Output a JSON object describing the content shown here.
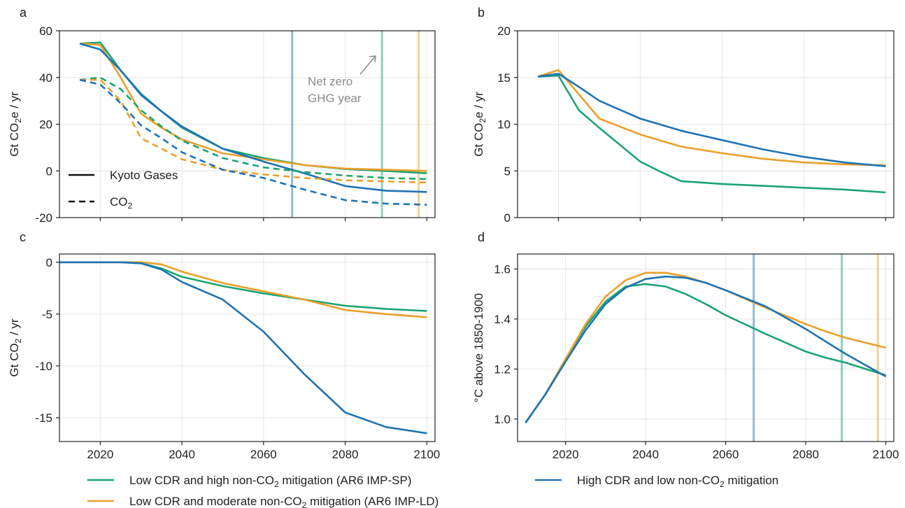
{
  "colors": {
    "green": "#1ba372",
    "orange": "#eaa02b",
    "blue": "#1f73b4"
  },
  "legend": {
    "items": [
      {
        "key": "green",
        "label": "Low CDR and high non-CO₂ mitigation (AR6 IMP-SP)"
      },
      {
        "key": "orange",
        "label": "Low CDR and moderate non-CO₂ mitigation (AR6 IMP-LD)"
      },
      {
        "key": "blue",
        "label": "High CDR and low non-CO₂ mitigation"
      }
    ]
  },
  "chart_data": [
    {
      "panel": "a",
      "type": "line",
      "ylabel": "Gt CO₂e / yr",
      "ylim": [
        -20,
        60
      ],
      "xlim": [
        2010,
        2102
      ],
      "yticks": [
        -20,
        0,
        20,
        40,
        60
      ],
      "xticks": [
        2020,
        2040,
        2060,
        2080,
        2100
      ],
      "show_xtick_labels": false,
      "grid": true,
      "inner_legend": [
        {
          "style": "solid",
          "label": "Kyoto Gases"
        },
        {
          "style": "dashed",
          "label": "CO₂"
        }
      ],
      "annotation": {
        "line1": "Net zero",
        "line2": "GHG year"
      },
      "vlines": [
        {
          "key": "blue",
          "x": 2067
        },
        {
          "key": "green",
          "x": 2089
        },
        {
          "key": "orange",
          "x": 2098
        }
      ],
      "series": [
        {
          "key": "green",
          "style": "solid",
          "x": [
            2015,
            2020,
            2025,
            2030,
            2035,
            2040,
            2050,
            2060,
            2070,
            2080,
            2090,
            2100
          ],
          "values": [
            54.5,
            55,
            43,
            33,
            25.5,
            18.5,
            9.5,
            5.5,
            2.5,
            0.8,
            0,
            -1
          ]
        },
        {
          "key": "orange",
          "style": "solid",
          "x": [
            2015,
            2020,
            2025,
            2030,
            2035,
            2040,
            2050,
            2060,
            2070,
            2080,
            2090,
            2100
          ],
          "values": [
            54.5,
            54,
            40,
            24.5,
            18.5,
            13.5,
            7.5,
            5,
            2.5,
            1,
            0.5,
            0
          ]
        },
        {
          "key": "blue",
          "style": "solid",
          "x": [
            2015,
            2020,
            2025,
            2030,
            2035,
            2040,
            2050,
            2060,
            2070,
            2080,
            2090,
            2100
          ],
          "values": [
            54.5,
            52,
            43,
            32.5,
            25.5,
            19,
            9.5,
            4,
            -1,
            -6.5,
            -8.5,
            -9
          ]
        },
        {
          "key": "green",
          "style": "dashed",
          "x": [
            2015,
            2020,
            2025,
            2030,
            2035,
            2040,
            2050,
            2060,
            2070,
            2080,
            2090,
            2100
          ],
          "values": [
            39,
            40,
            35,
            26,
            19,
            13,
            5.5,
            1.5,
            -0.5,
            -2,
            -3,
            -3.5
          ]
        },
        {
          "key": "orange",
          "style": "dashed",
          "x": [
            2015,
            2020,
            2025,
            2030,
            2035,
            2040,
            2050,
            2060,
            2070,
            2080,
            2090,
            2100
          ],
          "values": [
            39,
            39,
            30,
            14,
            9.5,
            5,
            0.5,
            -1.5,
            -3,
            -4,
            -4.5,
            -5
          ]
        },
        {
          "key": "blue",
          "style": "dashed",
          "x": [
            2015,
            2020,
            2025,
            2030,
            2035,
            2040,
            2050,
            2060,
            2070,
            2080,
            2090,
            2100
          ],
          "values": [
            39,
            37,
            29,
            19.5,
            14,
            8,
            0.5,
            -3,
            -8,
            -12.5,
            -14,
            -14.5
          ]
        }
      ]
    },
    {
      "panel": "b",
      "type": "line",
      "ylabel": "Gt CO₂e / yr",
      "ylim": [
        0,
        20
      ],
      "xlim": [
        2010,
        2102
      ],
      "yticks": [
        0,
        5,
        10,
        15,
        20
      ],
      "xticks": [
        2020,
        2040,
        2060,
        2080,
        2100
      ],
      "show_xtick_labels": false,
      "grid": true,
      "vlines": [],
      "series": [
        {
          "key": "green",
          "style": "solid",
          "x": [
            2015,
            2020,
            2025,
            2030,
            2040,
            2045,
            2050,
            2060,
            2070,
            2080,
            2090,
            2100
          ],
          "values": [
            15.1,
            15.2,
            11.5,
            9.6,
            6,
            4.9,
            3.9,
            3.6,
            3.4,
            3.2,
            3,
            2.7
          ]
        },
        {
          "key": "orange",
          "style": "solid",
          "x": [
            2015,
            2020,
            2025,
            2030,
            2040,
            2050,
            2060,
            2070,
            2080,
            2090,
            2100
          ],
          "values": [
            15.1,
            15.8,
            13.2,
            10.6,
            8.9,
            7.6,
            6.9,
            6.3,
            5.9,
            5.7,
            5.6
          ]
        },
        {
          "key": "blue",
          "style": "solid",
          "x": [
            2015,
            2020,
            2025,
            2030,
            2040,
            2050,
            2060,
            2070,
            2080,
            2090,
            2100
          ],
          "values": [
            15.1,
            15.4,
            14,
            12.5,
            10.6,
            9.3,
            8.3,
            7.3,
            6.5,
            5.9,
            5.5
          ]
        }
      ]
    },
    {
      "panel": "c",
      "type": "line",
      "ylabel": "Gt CO₂ / yr",
      "ylim": [
        -17.3,
        0.8
      ],
      "xlim": [
        2010,
        2102
      ],
      "yticks": [
        -15,
        -10,
        -5,
        0
      ],
      "xticks": [
        2020,
        2040,
        2060,
        2080,
        2100
      ],
      "show_xtick_labels": true,
      "grid": true,
      "vlines": [],
      "series": [
        {
          "key": "green",
          "style": "solid",
          "x": [
            2010,
            2020,
            2025,
            2030,
            2035,
            2040,
            2050,
            2060,
            2070,
            2080,
            2090,
            2100
          ],
          "values": [
            0,
            0,
            0,
            -0.1,
            -0.6,
            -1.4,
            -2.3,
            -3,
            -3.6,
            -4.2,
            -4.5,
            -4.7
          ]
        },
        {
          "key": "orange",
          "style": "solid",
          "x": [
            2010,
            2020,
            2025,
            2030,
            2035,
            2040,
            2050,
            2060,
            2070,
            2080,
            2090,
            2100
          ],
          "values": [
            0,
            0,
            0,
            0,
            -0.2,
            -0.9,
            -2,
            -2.8,
            -3.6,
            -4.6,
            -5,
            -5.3
          ]
        },
        {
          "key": "blue",
          "style": "solid",
          "x": [
            2010,
            2020,
            2025,
            2030,
            2035,
            2040,
            2050,
            2060,
            2070,
            2080,
            2090,
            2100
          ],
          "values": [
            0,
            0,
            0,
            -0.1,
            -0.7,
            -1.9,
            -3.6,
            -6.7,
            -10.8,
            -14.5,
            -15.9,
            -16.5
          ]
        }
      ]
    },
    {
      "panel": "d",
      "type": "line",
      "ylabel": "°C above 1850-1900",
      "ylim": [
        0.91,
        1.66
      ],
      "xlim": [
        2008,
        2102
      ],
      "yticks": [
        1.0,
        1.2,
        1.4,
        1.6
      ],
      "ytick_labels": [
        "1.0",
        "1.2",
        "1.4",
        "1.6"
      ],
      "xticks": [
        2020,
        2040,
        2060,
        2080,
        2100
      ],
      "show_xtick_labels": true,
      "grid": true,
      "vlines": [
        {
          "key": "blue",
          "x": 2067
        },
        {
          "key": "green",
          "x": 2089
        },
        {
          "key": "orange",
          "x": 2098
        }
      ],
      "series": [
        {
          "key": "green",
          "style": "solid",
          "x": [
            2010,
            2015,
            2020,
            2025,
            2030,
            2035,
            2040,
            2045,
            2050,
            2055,
            2060,
            2070,
            2080,
            2085,
            2090,
            2095,
            2100
          ],
          "values": [
            0.985,
            1.1,
            1.24,
            1.37,
            1.47,
            1.53,
            1.54,
            1.53,
            1.5,
            1.46,
            1.415,
            1.34,
            1.27,
            1.245,
            1.225,
            1.2,
            1.175
          ]
        },
        {
          "key": "orange",
          "style": "solid",
          "x": [
            2010,
            2015,
            2020,
            2025,
            2030,
            2035,
            2040,
            2045,
            2050,
            2055,
            2060,
            2070,
            2080,
            2085,
            2090,
            2095,
            2100
          ],
          "values": [
            0.985,
            1.1,
            1.24,
            1.38,
            1.49,
            1.555,
            1.585,
            1.585,
            1.57,
            1.545,
            1.515,
            1.445,
            1.38,
            1.35,
            1.325,
            1.305,
            1.285
          ]
        },
        {
          "key": "blue",
          "style": "solid",
          "x": [
            2010,
            2015,
            2020,
            2025,
            2030,
            2035,
            2040,
            2045,
            2050,
            2055,
            2060,
            2070,
            2080,
            2085,
            2090,
            2095,
            2100
          ],
          "values": [
            0.985,
            1.1,
            1.23,
            1.355,
            1.46,
            1.525,
            1.56,
            1.57,
            1.565,
            1.545,
            1.515,
            1.45,
            1.36,
            1.31,
            1.26,
            1.215,
            1.17
          ]
        }
      ]
    }
  ]
}
